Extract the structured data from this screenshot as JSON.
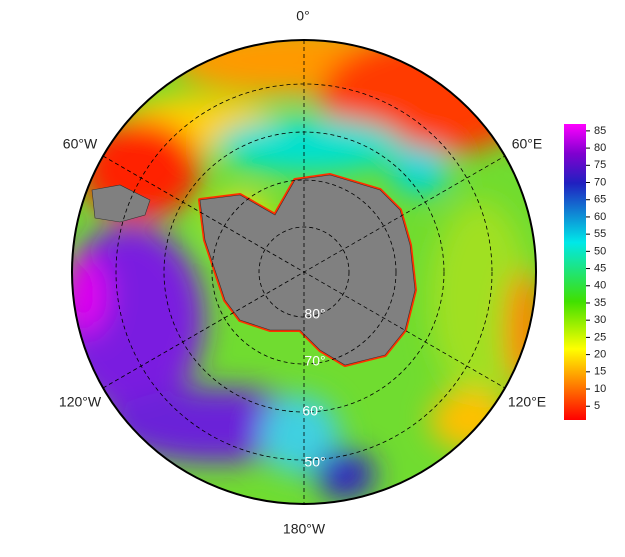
{
  "longitude_labels": [
    "0°",
    "60°E",
    "120°E",
    "180°W",
    "120°W",
    "60°W"
  ],
  "latitude_labels": [
    "80°",
    "70°",
    "60°",
    "50°"
  ],
  "colorbar": {
    "range": [
      1,
      87
    ],
    "ticks": [
      5,
      10,
      15,
      20,
      25,
      30,
      35,
      40,
      45,
      50,
      55,
      60,
      65,
      70,
      75,
      80,
      85
    ]
  }
}
